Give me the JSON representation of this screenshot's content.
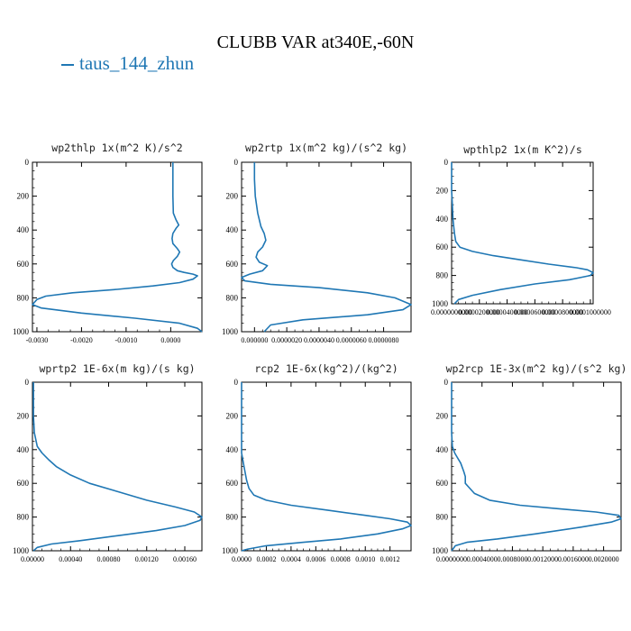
{
  "title": "CLUBB VAR at340E,-60N",
  "legend": {
    "label": "taus_144_zhun",
    "color": "#1f77b4"
  },
  "chart_data": [
    {
      "type": "line",
      "title": "wp2thlp  1x(m^2 K)/s^2",
      "xlabel": "",
      "ylabel": "",
      "xlim": [
        -0.0031,
        0.0007
      ],
      "ylim": [
        1000,
        0
      ],
      "xticks": [
        -0.003,
        -0.002,
        -0.001,
        0.0
      ],
      "xtick_labels": [
        "-0.0030",
        "-0.0020",
        "-0.0010",
        "0.0000"
      ],
      "yticks": [
        0,
        200,
        400,
        600,
        800,
        1000
      ],
      "ytick_labels": [
        "0",
        "200",
        "400",
        "600",
        "800",
        "1000"
      ],
      "series": [
        {
          "name": "taus_144_zhun",
          "x": [
            5e-05,
            5e-05,
            5e-05,
            6e-05,
            0.00012,
            0.00018,
            0.00012,
            5e-05,
            3e-05,
            5e-05,
            0.00015,
            0.0002,
            0.00015,
            6e-05,
            2e-05,
            5e-05,
            0.00015,
            0.0003,
            0.0005,
            0.0006,
            0.0005,
            0.0002,
            -0.0004,
            -0.0012,
            -0.0022,
            -0.0028,
            -0.003,
            -0.0031,
            -0.0029,
            -0.002,
            -0.0008,
            0.0002,
            0.0006,
            0.0007
          ],
          "y": [
            0,
            100,
            200,
            300,
            340,
            370,
            390,
            420,
            450,
            480,
            510,
            530,
            555,
            580,
            600,
            620,
            640,
            650,
            660,
            670,
            690,
            710,
            730,
            750,
            770,
            790,
            810,
            840,
            860,
            890,
            920,
            950,
            980,
            1000
          ]
        }
      ]
    },
    {
      "type": "line",
      "title": "wp2rtp  1x(m^2 kg)/(s^2 kg)",
      "xlabel": "",
      "ylabel": "",
      "xlim": [
        -8e-07,
        9.7e-06
      ],
      "ylim": [
        1000,
        0
      ],
      "xticks": [
        0.0,
        2e-06,
        4e-06,
        6e-06,
        8e-06
      ],
      "xtick_labels": [
        "0.000000",
        "0.0000020",
        "0.0000040",
        "0.0000060",
        "0.0000080"
      ],
      "yticks": [
        0,
        200,
        400,
        600,
        800,
        1000
      ],
      "ytick_labels": [
        "0",
        "200",
        "400",
        "600",
        "800",
        "1000"
      ],
      "series": [
        {
          "name": "taus_144_zhun",
          "x": [
            0.0,
            0.0,
            5e-08,
            2e-07,
            4e-07,
            6e-07,
            7e-07,
            5e-07,
            2e-07,
            1e-07,
            3e-07,
            8e-07,
            5e-07,
            -3e-07,
            -8e-07,
            -6e-07,
            1e-06,
            4e-06,
            7e-06,
            8.7e-06,
            9.7e-06,
            9.2e-06,
            7e-06,
            3e-06,
            1e-06,
            6e-07
          ],
          "y": [
            0,
            100,
            200,
            300,
            380,
            420,
            460,
            500,
            530,
            560,
            590,
            610,
            640,
            660,
            680,
            700,
            720,
            740,
            770,
            800,
            840,
            870,
            900,
            930,
            960,
            1000
          ]
        }
      ]
    },
    {
      "type": "line",
      "title": "wpthlp2  1x(m K^2)/s",
      "xlabel": "",
      "ylabel": "",
      "xlim": [
        0,
        0.000102
      ],
      "ylim": [
        1000,
        0
      ],
      "xticks": [
        0.0,
        2e-05,
        4e-05,
        6e-05,
        8e-05,
        0.0001
      ],
      "xtick_labels": [
        "0.0000000000",
        "0.0000200000",
        "0.0000400000",
        "0.0000600000",
        "0.0000800000",
        "0.0001000000"
      ],
      "yticks": [
        0,
        200,
        400,
        600,
        800,
        1000
      ],
      "ytick_labels": [
        "0",
        "200",
        "400",
        "600",
        "800",
        "1000"
      ],
      "series": [
        {
          "name": "taus_144_zhun",
          "x": [
            0.0,
            0.0,
            5e-07,
            1e-06,
            2e-06,
            3e-06,
            6e-06,
            1.5e-05,
            3e-05,
            5e-05,
            7e-05,
            9e-05,
            9.8e-05,
            0.000102,
            0.0001,
            8.5e-05,
            6e-05,
            3.5e-05,
            1.5e-05,
            5e-06,
            2e-06
          ],
          "y": [
            0,
            200,
            300,
            400,
            500,
            560,
            600,
            630,
            660,
            690,
            720,
            745,
            760,
            780,
            800,
            830,
            860,
            900,
            940,
            970,
            1000
          ]
        }
      ]
    },
    {
      "type": "line",
      "title": "wprtp2  1E-6x(m kg)/(s kg)",
      "xlabel": "",
      "ylabel": "",
      "xlim": [
        0,
        0.00178
      ],
      "ylim": [
        1000,
        0
      ],
      "xticks": [
        0.0,
        0.0004,
        0.0008,
        0.0012,
        0.0016
      ],
      "xtick_labels": [
        "0.00000",
        "0.00040",
        "0.00080",
        "0.00120",
        "0.00160"
      ],
      "yticks": [
        0,
        200,
        400,
        600,
        800,
        1000
      ],
      "ytick_labels": [
        "0",
        "200",
        "400",
        "600",
        "800",
        "1000"
      ],
      "series": [
        {
          "name": "taus_144_zhun",
          "x": [
            1e-05,
            1e-05,
            1e-05,
            2e-05,
            5e-05,
            0.0001,
            0.00017,
            0.00025,
            0.0004,
            0.0006,
            0.0009,
            0.0012,
            0.0015,
            0.0017,
            0.00178,
            0.00176,
            0.0016,
            0.0013,
            0.0009,
            0.0005,
            0.0002,
            5e-05,
            1e-05
          ],
          "y": [
            0,
            100,
            200,
            300,
            380,
            420,
            460,
            500,
            550,
            600,
            650,
            700,
            740,
            770,
            800,
            820,
            850,
            880,
            910,
            940,
            960,
            980,
            1000
          ]
        }
      ]
    },
    {
      "type": "line",
      "title": "rcp2  1E-6x(kg^2)/(kg^2)",
      "xlabel": "",
      "ylabel": "",
      "xlim": [
        0,
        0.00137
      ],
      "ylim": [
        1000,
        0
      ],
      "xticks": [
        0.0,
        0.0002,
        0.0004,
        0.0006,
        0.0008,
        0.001,
        0.0012
      ],
      "xtick_labels": [
        "0.0000",
        "0.0002",
        "0.0004",
        "0.0006",
        "0.0008",
        "0.0010",
        "0.0012"
      ],
      "yticks": [
        0,
        200,
        400,
        600,
        800,
        1000
      ],
      "ytick_labels": [
        "0",
        "200",
        "400",
        "600",
        "800",
        "1000"
      ],
      "series": [
        {
          "name": "taus_144_zhun",
          "x": [
            0.0,
            0.0,
            2e-05,
            4e-05,
            6e-05,
            0.0001,
            0.0002,
            0.0004,
            0.0007,
            0.001,
            0.0012,
            0.00134,
            0.00137,
            0.0013,
            0.0011,
            0.0008,
            0.0005,
            0.0002,
            5e-05,
            0.0
          ],
          "y": [
            0,
            420,
            500,
            580,
            630,
            670,
            700,
            730,
            760,
            790,
            810,
            830,
            850,
            870,
            900,
            930,
            950,
            970,
            990,
            1000
          ]
        }
      ]
    },
    {
      "type": "line",
      "title": "wp2rcp  1E-3x(m^2 kg)/(s^2 kg)",
      "xlabel": "",
      "ylabel": "",
      "xlim": [
        0,
        0.00223
      ],
      "ylim": [
        1000,
        0
      ],
      "xticks": [
        0.0,
        0.0004,
        0.0008,
        0.0012,
        0.0016,
        0.002
      ],
      "xtick_labels": [
        "0.0000000",
        "0.0004000",
        "0.0008000",
        "0.0012000",
        "0.0016000",
        "0.0020000"
      ],
      "yticks": [
        0,
        200,
        400,
        600,
        800,
        1000
      ],
      "ytick_labels": [
        "0",
        "200",
        "400",
        "600",
        "800",
        "1000"
      ],
      "series": [
        {
          "name": "taus_144_zhun",
          "x": [
            0.0,
            0.0,
            1e-05,
            4e-05,
            8e-05,
            0.00012,
            0.00016,
            0.00018,
            0.00018,
            0.00022,
            0.0003,
            0.0005,
            0.0009,
            0.0014,
            0.0019,
            0.0022,
            0.00223,
            0.0021,
            0.0017,
            0.0011,
            0.0006,
            0.0002,
            5e-05,
            0.0
          ],
          "y": [
            0,
            300,
            380,
            420,
            450,
            480,
            530,
            560,
            600,
            620,
            660,
            700,
            730,
            750,
            770,
            790,
            810,
            830,
            860,
            900,
            930,
            950,
            970,
            1000
          ]
        }
      ]
    }
  ]
}
